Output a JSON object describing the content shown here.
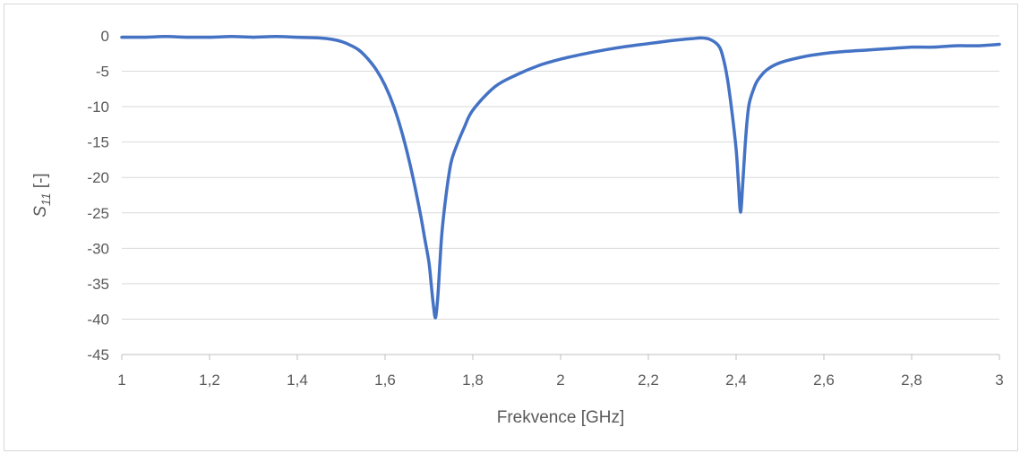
{
  "chart_data": {
    "type": "line",
    "title": "",
    "xlabel": "Frekvence [GHz]",
    "ylabel": {
      "symbol": "S",
      "subscript": "11",
      "unit": " [-]"
    },
    "xlim": [
      1,
      3
    ],
    "ylim": [
      -45,
      0
    ],
    "x_ticks": [
      1,
      1.2,
      1.4,
      1.6,
      1.8,
      2,
      2.2,
      2.4,
      2.6,
      2.8,
      3
    ],
    "x_tick_labels": [
      "1",
      "1,2",
      "1,4",
      "1,6",
      "1,8",
      "2",
      "2,2",
      "2,4",
      "2,6",
      "2,8",
      "3"
    ],
    "y_ticks": [
      0,
      -5,
      -10,
      -15,
      -20,
      -25,
      -30,
      -35,
      -40,
      -45
    ],
    "y_tick_labels": [
      "0",
      "-5",
      "-10",
      "-15",
      "-20",
      "-25",
      "-30",
      "-35",
      "-40",
      "-45"
    ],
    "grid": "horizontal",
    "legend": "none",
    "series": [
      {
        "color": "#4472c4",
        "x": [
          1.0,
          1.05,
          1.1,
          1.15,
          1.2,
          1.25,
          1.3,
          1.35,
          1.4,
          1.45,
          1.48,
          1.5,
          1.52,
          1.54,
          1.56,
          1.58,
          1.6,
          1.62,
          1.64,
          1.66,
          1.68,
          1.69,
          1.7,
          1.705,
          1.71,
          1.715,
          1.72,
          1.725,
          1.73,
          1.74,
          1.75,
          1.76,
          1.78,
          1.8,
          1.85,
          1.9,
          1.95,
          2.0,
          2.05,
          2.1,
          2.15,
          2.2,
          2.25,
          2.28,
          2.3,
          2.32,
          2.34,
          2.36,
          2.37,
          2.38,
          2.39,
          2.4,
          2.405,
          2.41,
          2.415,
          2.42,
          2.425,
          2.43,
          2.44,
          2.45,
          2.47,
          2.5,
          2.55,
          2.6,
          2.65,
          2.7,
          2.75,
          2.8,
          2.85,
          2.9,
          2.95,
          3.0
        ],
        "y": [
          -0.2,
          -0.2,
          -0.1,
          -0.2,
          -0.2,
          -0.1,
          -0.2,
          -0.1,
          -0.2,
          -0.3,
          -0.5,
          -0.8,
          -1.3,
          -2.0,
          -3.2,
          -4.8,
          -7.0,
          -10.0,
          -14.0,
          -19.0,
          -25.0,
          -28.5,
          -32.0,
          -35.0,
          -38.0,
          -39.8,
          -37.0,
          -32.0,
          -27.5,
          -22.0,
          -18.0,
          -16.0,
          -13.0,
          -10.5,
          -7.2,
          -5.5,
          -4.2,
          -3.3,
          -2.6,
          -2.0,
          -1.5,
          -1.1,
          -0.7,
          -0.5,
          -0.4,
          -0.3,
          -0.5,
          -1.4,
          -3.0,
          -6.0,
          -10.5,
          -16.0,
          -20.5,
          -24.9,
          -21.0,
          -16.0,
          -12.0,
          -9.5,
          -7.5,
          -6.2,
          -4.8,
          -3.8,
          -3.0,
          -2.5,
          -2.2,
          -2.0,
          -1.8,
          -1.6,
          -1.6,
          -1.4,
          -1.4,
          -1.2
        ]
      }
    ]
  }
}
